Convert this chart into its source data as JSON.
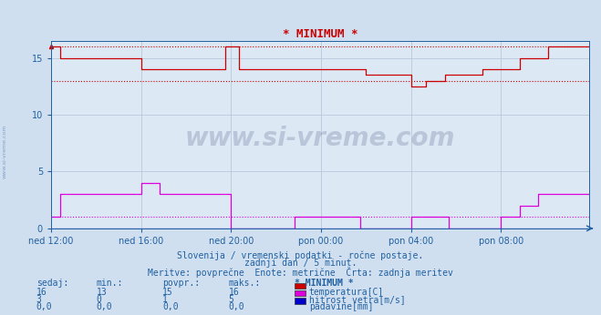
{
  "title": "* MINIMUM *",
  "title_color": "#cc0000",
  "bg_color": "#d0dff0",
  "plot_bg_color": "#dce8f4",
  "grid_color": "#b8c8dc",
  "tick_color": "#2060a0",
  "text_color": "#2060a0",
  "ylim": [
    0,
    16.5
  ],
  "yticks": [
    0,
    5,
    10,
    15
  ],
  "xtick_labels": [
    "ned 12:00",
    "ned 16:00",
    "ned 20:00",
    "pon 00:00",
    "pon 04:00",
    "pon 08:00"
  ],
  "n_points": 288,
  "temp_color": "#cc0000",
  "wind_color": "#dd00dd",
  "rain_color": "#0000cc",
  "temp_max_dotted": 16,
  "temp_min_dotted": 13,
  "wind_min_dotted": 1,
  "subtitle1": "Slovenija / vremenski podatki - ročne postaje.",
  "subtitle2": "zadnji dan / 5 minut.",
  "subtitle3": "Meritve: povprečne  Enote: metrične  Črta: zadnja meritev",
  "table_header_labels": [
    "sedaj:",
    "min.:",
    "povpr.:",
    "maks.:",
    "* MINIMUM *"
  ],
  "table_rows": [
    [
      "16",
      "13",
      "15",
      "16",
      "temperatura[C]",
      "#cc0000"
    ],
    [
      "3",
      "0",
      "1",
      "5",
      "hitrost vetra[m/s]",
      "#dd00dd"
    ],
    [
      "0,0",
      "0,0",
      "0,0",
      "0,0",
      "padavine[mm]",
      "#0000cc"
    ]
  ],
  "watermark": "www.si-vreme.com",
  "watermark_color": "#1a3060",
  "watermark_alpha": 0.18,
  "sidewatermark": "www.si-vreme.com",
  "sidewatermark_color": "#4070a0",
  "sidewatermark_alpha": 0.55
}
